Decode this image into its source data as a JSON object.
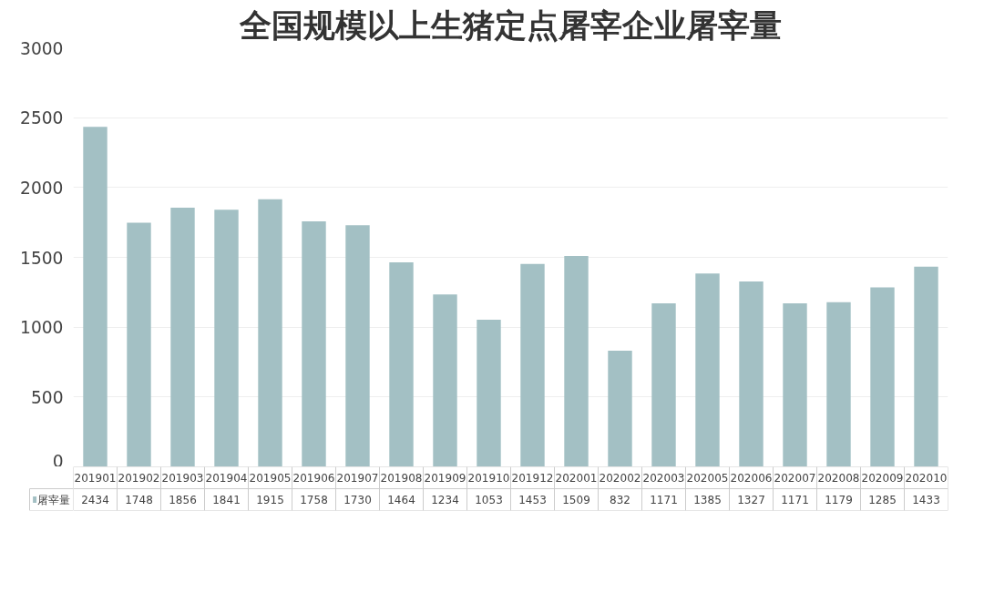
{
  "chart_data": {
    "type": "bar",
    "title": "全国规模以上生猪定点屠宰企业屠宰量",
    "categories": [
      "201901",
      "201902",
      "201903",
      "201904",
      "201905",
      "201906",
      "201907",
      "201908",
      "201909",
      "201910",
      "201912",
      "202001",
      "202002",
      "202003",
      "202005",
      "202006",
      "202007",
      "202008",
      "202009",
      "202010"
    ],
    "series": [
      {
        "name": "屠宰量",
        "color": "#a3c0c4",
        "values": [
          2434,
          1748,
          1856,
          1841,
          1915,
          1758,
          1730,
          1464,
          1234,
          1053,
          1453,
          1509,
          832,
          1171,
          1385,
          1327,
          1171,
          1179,
          1285,
          1433
        ]
      }
    ],
    "ylim": [
      0,
      3000
    ],
    "yticks": [
      0,
      500,
      1000,
      1500,
      2000,
      2500,
      3000
    ],
    "grid": "y",
    "legend": "bottom",
    "data_labels": true
  }
}
